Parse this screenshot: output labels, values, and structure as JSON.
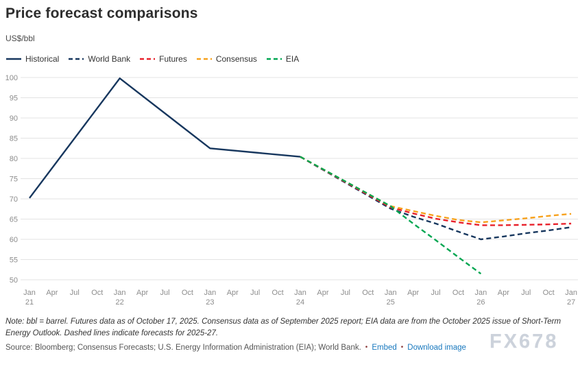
{
  "header": {
    "title": "Price forecast comparisons",
    "unit_label": "US$/bbl"
  },
  "chart_data": {
    "type": "line",
    "title": "Price forecast comparisons",
    "ylabel": "US$/bbl",
    "ylim": [
      50,
      100
    ],
    "ytick_step": 5,
    "grid": true,
    "legend_position": "top-left",
    "x_axis_note": "quarterly ticks from Jan 2021 to Jan 2027; series points are [quarterIndex, value] with quarterIndex 0 = Jan 21",
    "xticks": [
      {
        "month": "Jan",
        "year": "21"
      },
      {
        "month": "Apr"
      },
      {
        "month": "Jul"
      },
      {
        "month": "Oct"
      },
      {
        "month": "Jan",
        "year": "22"
      },
      {
        "month": "Apr"
      },
      {
        "month": "Jul"
      },
      {
        "month": "Oct"
      },
      {
        "month": "Jan",
        "year": "23"
      },
      {
        "month": "Apr"
      },
      {
        "month": "Jul"
      },
      {
        "month": "Oct"
      },
      {
        "month": "Jan",
        "year": "24"
      },
      {
        "month": "Apr"
      },
      {
        "month": "Jul"
      },
      {
        "month": "Oct"
      },
      {
        "month": "Jan",
        "year": "25"
      },
      {
        "month": "Apr"
      },
      {
        "month": "Jul"
      },
      {
        "month": "Oct"
      },
      {
        "month": "Jan",
        "year": "26"
      },
      {
        "month": "Apr"
      },
      {
        "month": "Jul"
      },
      {
        "month": "Oct"
      },
      {
        "month": "Jan",
        "year": "27"
      }
    ],
    "series": [
      {
        "name": "Historical",
        "color": "#17375e",
        "dashed": false,
        "points": [
          [
            0,
            70.2
          ],
          [
            4,
            99.8
          ],
          [
            8,
            82.5
          ],
          [
            12,
            80.4
          ]
        ]
      },
      {
        "name": "World Bank",
        "color": "#17375e",
        "dashed": true,
        "points": [
          [
            12,
            80.4
          ],
          [
            16,
            67.6
          ],
          [
            17,
            65.6
          ],
          [
            18,
            63.9
          ],
          [
            19,
            61.9
          ],
          [
            20,
            60.0
          ],
          [
            21,
            60.7
          ],
          [
            22,
            61.5
          ],
          [
            23,
            62.2
          ],
          [
            24,
            63.0
          ]
        ]
      },
      {
        "name": "Futures",
        "color": "#e8212b",
        "dashed": true,
        "points": [
          [
            12,
            80.4
          ],
          [
            16,
            67.9
          ],
          [
            17,
            66.4
          ],
          [
            18,
            65.1
          ],
          [
            19,
            64.2
          ],
          [
            20,
            63.5
          ],
          [
            21,
            63.5
          ],
          [
            22,
            63.6
          ],
          [
            23,
            63.7
          ],
          [
            24,
            63.9
          ]
        ]
      },
      {
        "name": "Consensus",
        "color": "#f7a11c",
        "dashed": true,
        "points": [
          [
            12,
            80.4
          ],
          [
            16,
            68.2
          ],
          [
            17,
            67.0
          ],
          [
            18,
            65.8
          ],
          [
            19,
            64.8
          ],
          [
            20,
            64.2
          ],
          [
            21,
            64.7
          ],
          [
            22,
            65.2
          ],
          [
            23,
            65.8
          ],
          [
            24,
            66.3
          ]
        ]
      },
      {
        "name": "EIA",
        "color": "#00a651",
        "dashed": true,
        "points": [
          [
            12,
            80.4
          ],
          [
            16,
            68.2
          ],
          [
            17,
            63.9
          ],
          [
            18,
            59.8
          ],
          [
            19,
            55.6
          ],
          [
            20,
            51.5
          ]
        ]
      }
    ]
  },
  "footer": {
    "note": "Note: bbl = barrel. Futures data as of October 17, 2025. Consensus data as of September 2025 report; EIA data are from the October 2025 issue of Short-Term Energy Outlook. Dashed lines indicate forecasts for 2025-27.",
    "source": "Source: Bloomberg; Consensus Forecasts; U.S. Energy Information Administration (EIA); World Bank.",
    "bullet": "•",
    "embed_label": "Embed",
    "download_label": "Download image",
    "watermark": "FX678"
  },
  "colors": {
    "grid": "#e3e3e3",
    "axis_text": "#8c8c8c",
    "link": "#1878be",
    "historical": "#17375e",
    "world_bank": "#17375e",
    "futures": "#e8212b",
    "consensus": "#f7a11c",
    "eia": "#00a651"
  }
}
